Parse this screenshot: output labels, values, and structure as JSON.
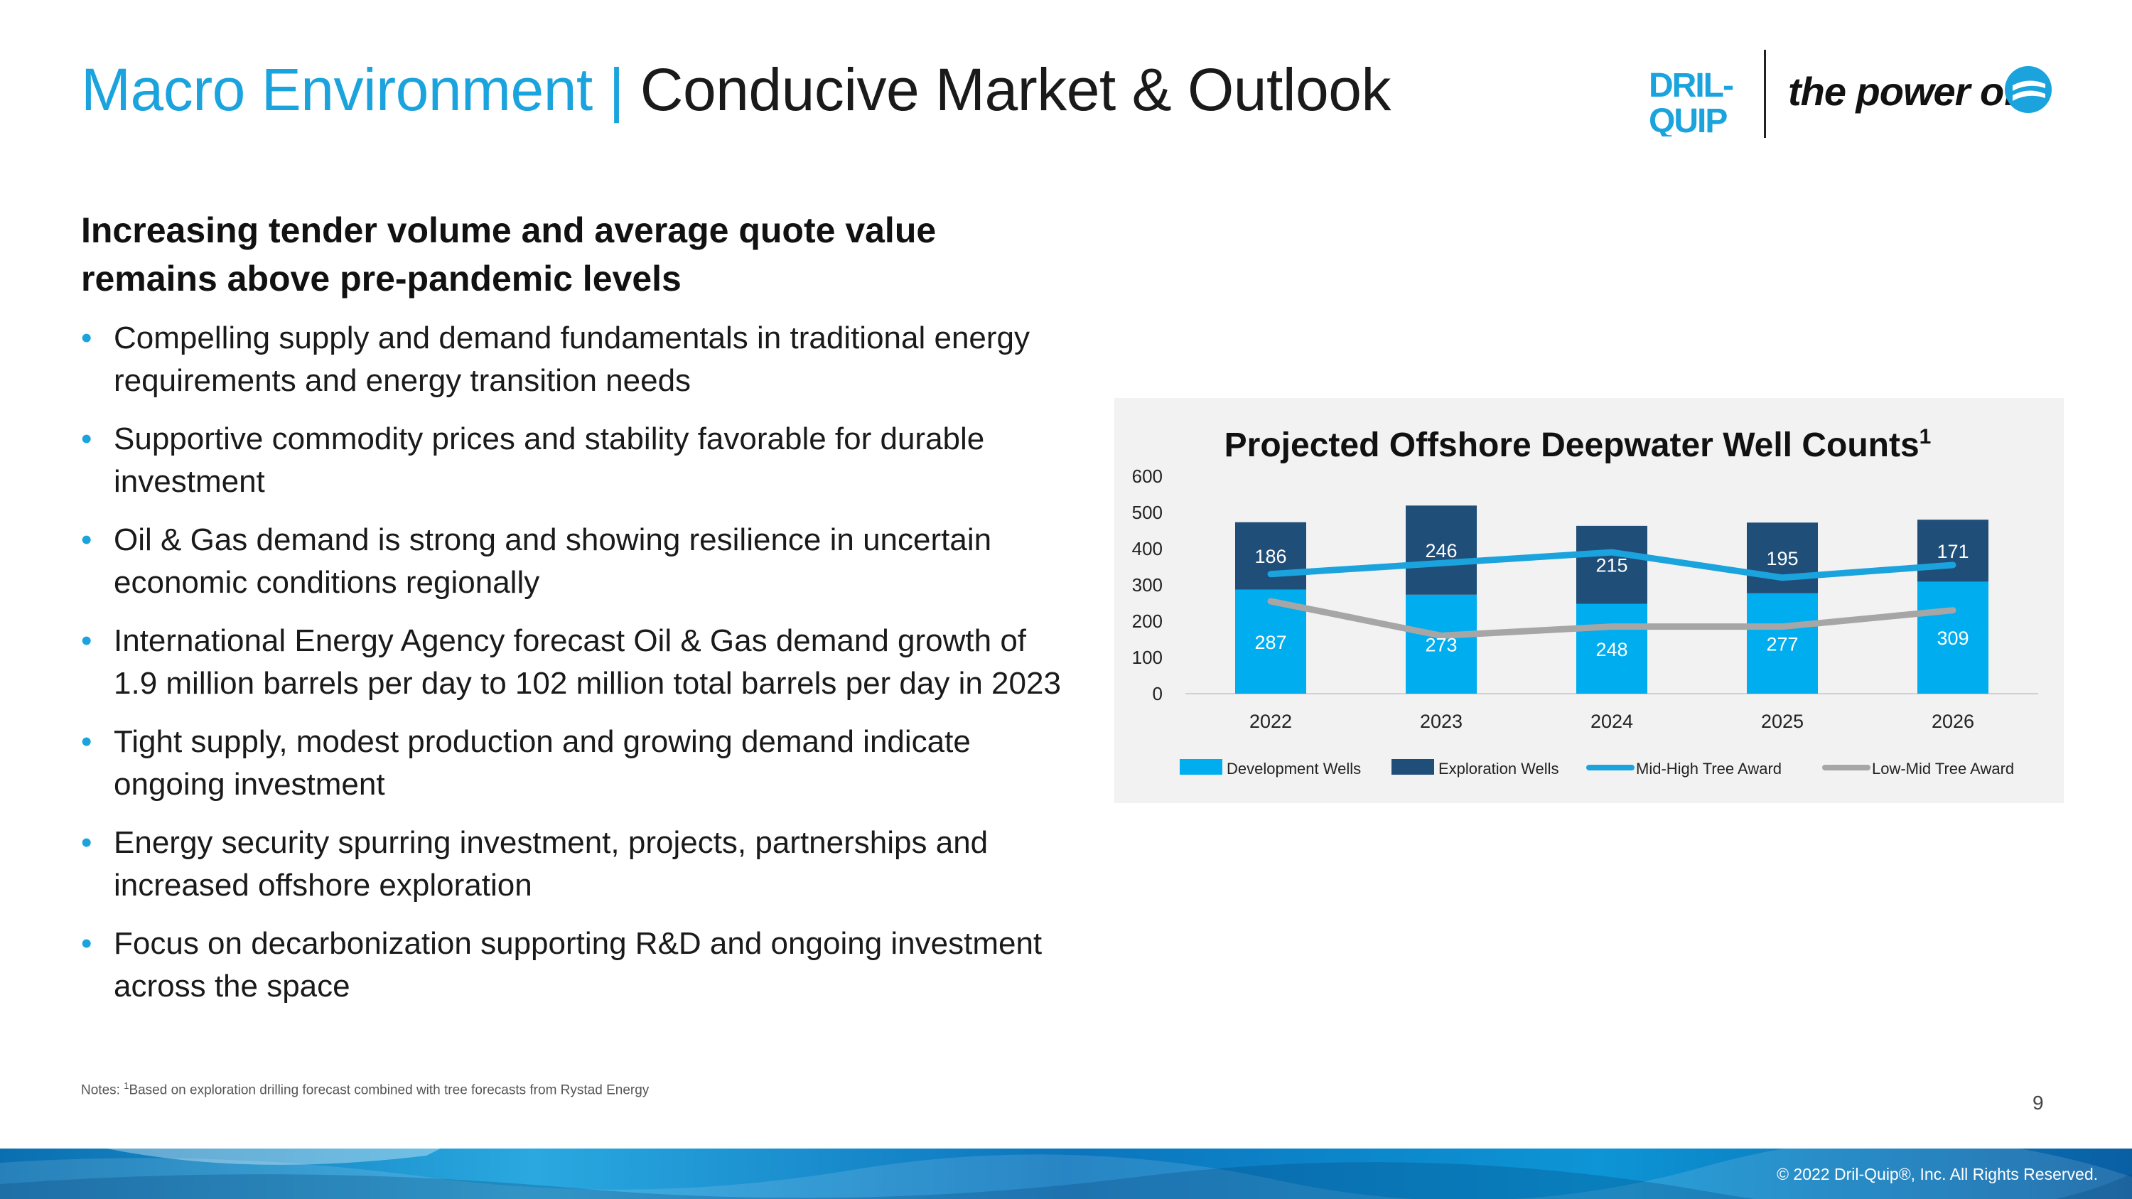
{
  "slide": {
    "title_part1": "Macro Environment",
    "title_sep": "|",
    "title_part2": "Conducive Market & Outlook",
    "heading": "Increasing tender volume and average quote value remains above pre-pandemic levels",
    "bullets": [
      "Compelling supply and demand fundamentals in traditional energy requirements and energy transition needs",
      "Supportive commodity prices and stability favorable for durable investment",
      "Oil & Gas demand is strong and showing resilience in uncertain economic conditions regionally",
      "International Energy Agency forecast Oil & Gas demand growth of 1.9 million barrels per day to 102 million total barrels per day in 2023",
      "Tight supply, modest production and growing demand indicate ongoing investment",
      "Energy security spurring investment, projects, partnerships and increased offshore exploration",
      "Focus on decarbonization supporting R&D and ongoing investment across the space"
    ],
    "notes_prefix": "Notes: ",
    "notes_sup": "1",
    "notes_text": "Based on exploration drilling forecast combined with tree forecasts from Rystad Energy",
    "page_number": "9",
    "copyright": "© 2022 Dril-Quip®, Inc. All Rights Reserved."
  },
  "logo": {
    "brand_line1": "DRIL-",
    "brand_line2": "QUIP",
    "tagline": "the power of",
    "brand_color": "#1aa3dd"
  },
  "chart_data": {
    "type": "bar",
    "stacked": true,
    "title": "Projected Offshore Deepwater Well Counts",
    "title_sup": "1",
    "categories": [
      "2022",
      "2023",
      "2024",
      "2025",
      "2026"
    ],
    "ylim": [
      0,
      600
    ],
    "yticks": [
      0,
      100,
      200,
      300,
      400,
      500,
      600
    ],
    "grid": false,
    "legend_position": "bottom",
    "series": [
      {
        "name": "Development Wells",
        "kind": "bar",
        "color": "#00adef",
        "values": [
          287,
          273,
          248,
          277,
          309
        ]
      },
      {
        "name": "Exploration Wells",
        "kind": "bar",
        "color": "#1f4e79",
        "values": [
          186,
          246,
          215,
          195,
          171
        ]
      },
      {
        "name": "Mid-High Tree Award",
        "kind": "line",
        "color": "#1aa3dd",
        "values": [
          330,
          360,
          390,
          320,
          355
        ]
      },
      {
        "name": "Low-Mid Tree Award",
        "kind": "line",
        "color": "#a6a6a6",
        "values": [
          255,
          160,
          185,
          185,
          230
        ]
      }
    ]
  }
}
